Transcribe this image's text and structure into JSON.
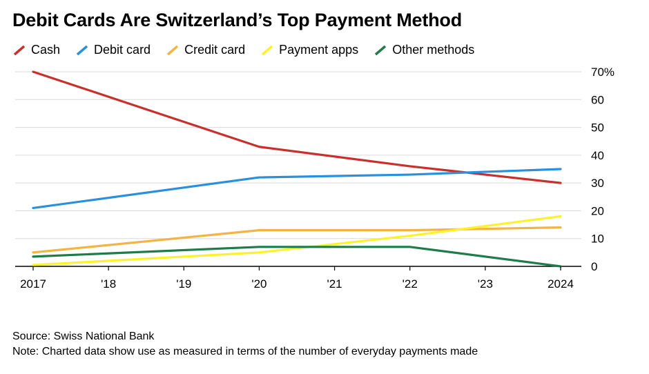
{
  "title": "Debit Cards Are Switzerland’s Top Payment Method",
  "source": "Source: Swiss National Bank",
  "note": "Note: Charted data show use as measured in terms of the number of everyday payments made",
  "chart_data": {
    "type": "line",
    "x_labels": [
      "2017",
      "'18",
      "'19",
      "'20",
      "'21",
      "'22",
      "'23",
      "2024"
    ],
    "x": [
      2017,
      2018,
      2019,
      2020,
      2021,
      2022,
      2023,
      2024
    ],
    "y_ticks": [
      0,
      10,
      20,
      30,
      40,
      50,
      60,
      70
    ],
    "y_tick_labels": [
      "0",
      "10",
      "20",
      "30",
      "40",
      "50",
      "60",
      "70%"
    ],
    "ylim": [
      0,
      70
    ],
    "grid": "horizontal",
    "legend_position": "top-left",
    "series": [
      {
        "name": "Cash",
        "color": "#c8302c",
        "x": [
          2017,
          2020,
          2022,
          2024
        ],
        "values": [
          70,
          43,
          36,
          30
        ]
      },
      {
        "name": "Debit card",
        "color": "#2a8fdc",
        "x": [
          2017,
          2020,
          2022,
          2024
        ],
        "values": [
          21,
          32,
          33,
          35
        ]
      },
      {
        "name": "Credit card",
        "color": "#f2b544",
        "x": [
          2017,
          2020,
          2022,
          2024
        ],
        "values": [
          5,
          13,
          13,
          14
        ]
      },
      {
        "name": "Payment apps",
        "color": "#fbf22a",
        "x": [
          2017,
          2020,
          2022,
          2024
        ],
        "values": [
          0.5,
          5,
          11,
          18
        ]
      },
      {
        "name": "Other methods",
        "color": "#1e7b4a",
        "x": [
          2017,
          2020,
          2022,
          2024
        ],
        "values": [
          3.5,
          7,
          7,
          0
        ]
      }
    ]
  }
}
